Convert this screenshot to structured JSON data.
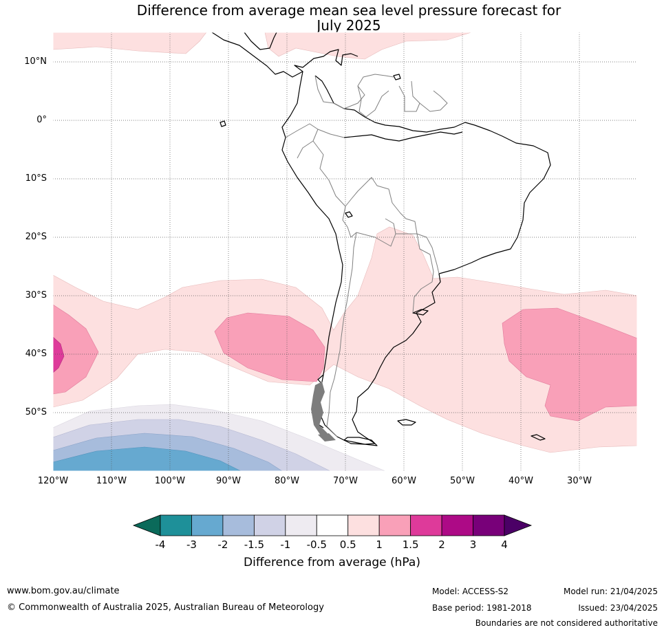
{
  "title_line1": "Difference from average mean sea level pressure forecast for",
  "title_line2": "July 2025",
  "lat_labels": [
    "10°N",
    "0°",
    "10°S",
    "20°S",
    "30°S",
    "40°S",
    "50°S"
  ],
  "lon_labels": [
    "120°W",
    "110°W",
    "100°W",
    "90°W",
    "80°W",
    "70°W",
    "60°W",
    "50°W",
    "40°W",
    "30°W"
  ],
  "colorbar": {
    "title": "Difference from average (hPa)",
    "ticks": [
      "-4",
      "-3",
      "-2",
      "-1.5",
      "-1",
      "-0.5",
      "0.5",
      "1",
      "1.5",
      "2",
      "3",
      "4"
    ],
    "colors": [
      "#1e9099",
      "#66a9d0",
      "#a7bcdc",
      "#d0d2e6",
      "#eeebf1",
      "#ffffff",
      "#fde0e0",
      "#f9a0b8",
      "#de3a9a",
      "#ad0a86",
      "#780079"
    ],
    "under_color": "#0b6a5a",
    "over_color": "#4b0066"
  },
  "footer": {
    "url": "www.bom.gov.au/climate",
    "copyright": "© Commonwealth of Australia 2025, Australian Bureau of Meteorology",
    "model": "Model: ACCESS-S2",
    "base_period": "Base period: 1981-2018",
    "model_run": "Model run: 21/04/2025",
    "issued": "Issued: 23/04/2025",
    "disclaimer": "Boundaries are not considered authoritative"
  }
}
